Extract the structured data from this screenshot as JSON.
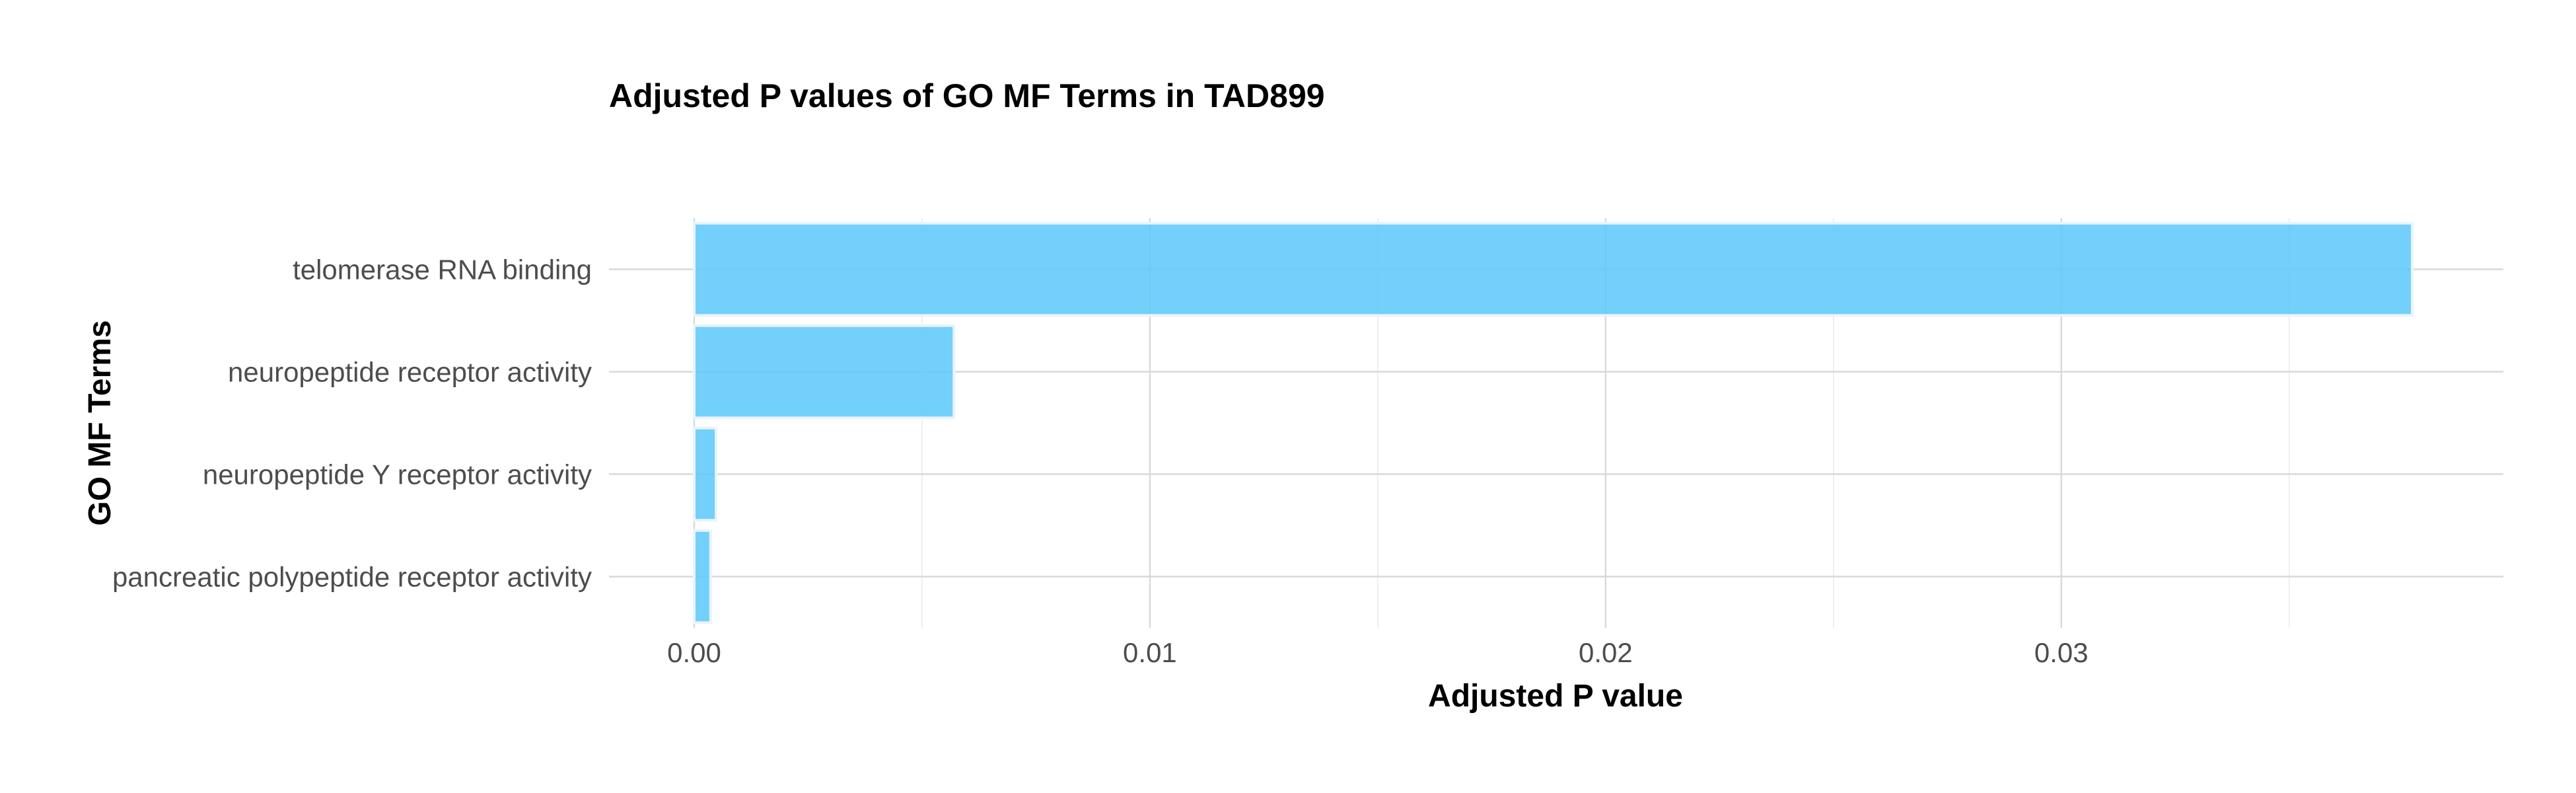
{
  "chart_data": {
    "type": "bar",
    "orientation": "horizontal",
    "title": "Adjusted P values of GO MF Terms in TAD899",
    "xlabel": "Adjusted P value",
    "ylabel": "GO MF Terms",
    "categories": [
      "telomerase RNA binding",
      "neuropeptide receptor activity",
      "neuropeptide Y receptor activity",
      "pancreatic polypeptide receptor activity"
    ],
    "values": [
      0.0377,
      0.0057,
      0.00048,
      0.00036
    ],
    "xlim": [
      -0.00187,
      0.0397
    ],
    "x_ticks": [
      0.0,
      0.01,
      0.02,
      0.03
    ],
    "x_tick_labels": [
      "0.00",
      "0.01",
      "0.02",
      "0.03"
    ],
    "x_minor_ticks": [
      0.005,
      0.015,
      0.025,
      0.035
    ],
    "bar_color": "#5bc8fa",
    "grid": true,
    "legend": "none"
  }
}
